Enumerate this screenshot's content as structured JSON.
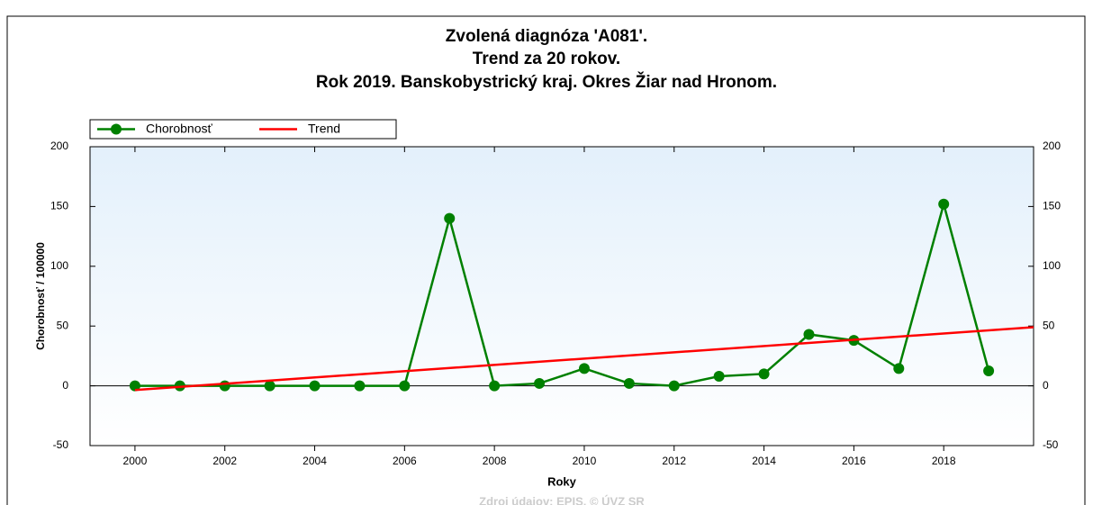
{
  "chart_data": {
    "type": "line",
    "title": [
      "Zvolená diagnóza 'A081'.",
      "Trend za 20 rokov.",
      "Rok 2019. Banskobystrický kraj. Okres Žiar nad Hronom."
    ],
    "xlabel": "Roky",
    "ylabel": "Chorobnosť / 100000",
    "source": "Zdroj údajov: EPIS, © ÚVZ SR",
    "xlim": [
      1999,
      2020
    ],
    "xticks": [
      2000,
      2002,
      2004,
      2006,
      2008,
      2010,
      2012,
      2014,
      2016,
      2018
    ],
    "ylim": [
      -50,
      200
    ],
    "yticks": [
      -50,
      0,
      50,
      100,
      150,
      200
    ],
    "legend": "top-left",
    "series": [
      {
        "name": "Chorobnosť",
        "color": "#008000",
        "x": [
          2000,
          2001,
          2002,
          2003,
          2004,
          2005,
          2006,
          2007,
          2008,
          2009,
          2010,
          2011,
          2012,
          2013,
          2014,
          2015,
          2016,
          2017,
          2018,
          2019
        ],
        "values": [
          0,
          0,
          0,
          0,
          0,
          0,
          0,
          140,
          0,
          2,
          14.5,
          2,
          0,
          8,
          10,
          43,
          38,
          14.5,
          152,
          12.5
        ]
      },
      {
        "name": "Trend",
        "color": "#ff0000",
        "x": [
          2000,
          2020
        ],
        "values": [
          -3.5,
          49
        ]
      }
    ]
  }
}
